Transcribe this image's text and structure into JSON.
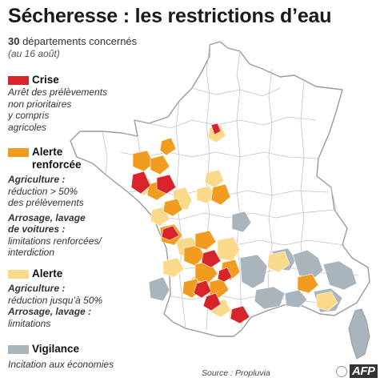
{
  "title": "Sécheresse : les restrictions d’eau",
  "subtitle_count": "30",
  "subtitle_text": " départements concernés",
  "date": "(au 16 août)",
  "colors": {
    "crise": "#d7242b",
    "alerte_renforcee": "#f19b1f",
    "alerte": "#fad98a",
    "vigilance": "#a9b4bc",
    "borders": "#b9b9b9"
  },
  "legend": {
    "crise": {
      "label": "Crise",
      "desc": [
        "Arrêt des prélèvements",
        "non prioritaires",
        "y compris",
        "agricoles"
      ]
    },
    "alerte_renforcee": {
      "label1": "Alerte",
      "label2": "renforcée",
      "line1_bold": "Agriculture :",
      "line1": [
        "réduction > 50%",
        "des prélèvements"
      ],
      "line2_bold": [
        "Arrosage, lavage",
        "de voitures :"
      ],
      "line2": [
        "limitations renforcées/",
        "interdiction"
      ]
    },
    "alerte": {
      "label": "Alerte",
      "line1_bold": "Agriculture :",
      "line1": "réduction jusqu’à 50%",
      "line2_bold": "Arrosage, lavage :",
      "line2": "limitations"
    },
    "vigilance": {
      "label": "Vigilance",
      "desc": "Incitation aux économies"
    }
  },
  "source": "Source : Propluvia",
  "logo": "AFP"
}
